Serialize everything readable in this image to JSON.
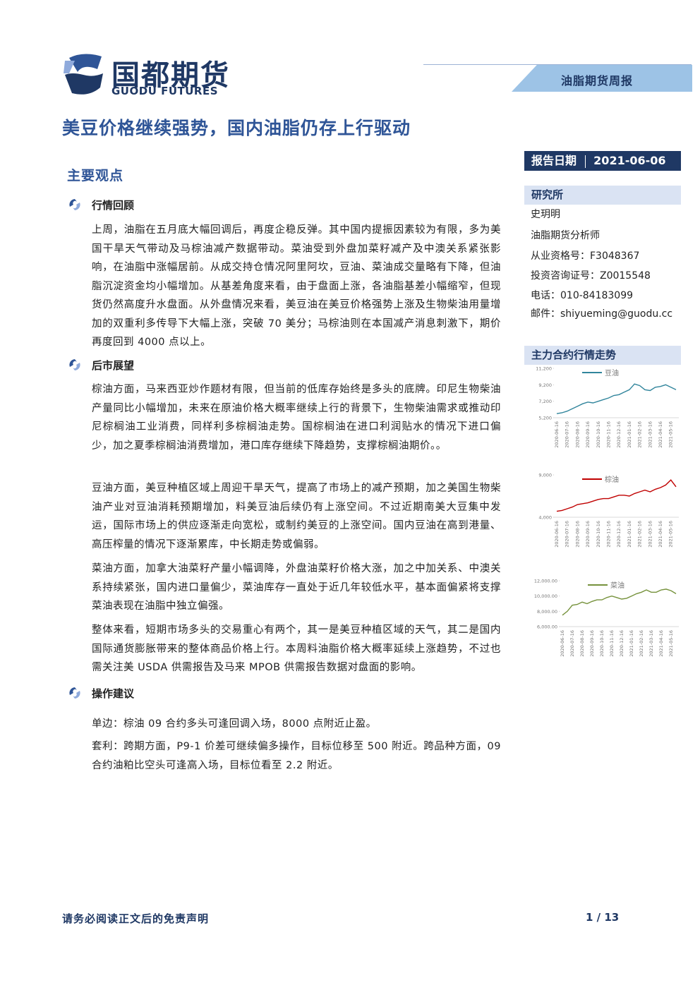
{
  "header": {
    "logo_cn": "国都期货",
    "logo_en": "GUODU FUTURES",
    "report_type": "油脂期货周报"
  },
  "title": "美豆价格继续强势，国内油脂仍存上行驱动",
  "report_date": {
    "label": "报告日期",
    "value": "2021-06-06"
  },
  "section": "主要观点",
  "subsections": [
    {
      "heading": "行情回顾",
      "paragraphs": [
        "上周，油脂在五月底大幅回调后，再度企稳反弹。其中国内提振因素较为有限，多为美国干旱天气带动及马棕油减产数据带动。菜油受到外盘加菜籽减产及中澳关系紧张影响，在油脂中涨幅居前。从成交持仓情况阿里阿坎，豆油、菜油成交量略有下降，但油脂沉淀资金均小幅增加。从基差角度来看，由于盘面上涨，各油脂基差小幅缩窄，但现货仍然高度升水盘面。从外盘情况来看，美豆油在美豆价格强势上涨及生物柴油用量增加的双重利多传导下大幅上涨，突破 70 美分；马棕油则在本国减产消息刺激下，期价再度回到 4000 点以上。"
      ]
    },
    {
      "heading": "后市展望",
      "paragraphs": [
        "棕油方面，马来西亚炒作题材有限，但当前的低库存始终是多头的底牌。印尼生物柴油产量同比小幅增加，未来在原油价格大概率继续上行的背景下，生物柴油需求或推动印尼棕榈油工业消费，同样利多棕榈油走势。国棕榈油在进口利润贴水的情况下进口偏少，加之夏季棕榈油消费增加，港口库存继续下降趋势，支撑棕榈油期价。。",
        "豆油方面，美豆种植区域上周迎干旱天气，提高了市场上的减产预期，加之美国生物柴油产业对豆油消耗预期增加，料美豆油后续仍有上涨空间。不过近期南美大豆集中发运，国际市场上的供应逐渐走向宽松，或制约美豆的上涨空间。国内豆油在高到港量、高压榨量的情况下逐渐累库，中长期走势或偏弱。",
        "菜油方面，加拿大油菜籽产量小幅调降，外盘油菜籽价格大涨，加之中加关系、中澳关系持续紧张，国内进口量偏少，菜油库存一直处于近几年较低水平，基本面偏紧将支撑菜油表现在油脂中独立偏强。",
        "整体来看，短期市场多头的交易重心有两个，其一是美豆种植区域的天气，其二是国内国际通货膨胀带来的整体商品价格上行。本周料油脂价格大概率延续上涨趋势，不过也需关注美 USDA 供需报告及马来 MPOB 供需报告数据对盘面的影响。"
      ]
    },
    {
      "heading": "操作建议",
      "paragraphs": [
        "单边：棕油 09 合约多头可逢回调入场，8000 点附近止盈。",
        "套利：跨期方面，P9-1 价差可继续偏多操作，目标位移至 500 附近。跨品种方面，09 合约油粕比空头可逢高入场，目标位看至 2.2 附近。"
      ]
    }
  ],
  "sidebar": {
    "institute": "研究所",
    "lines": [
      "史玥明",
      "油脂期货分析师",
      "从业资格号：F3048367",
      "投资咨询证号：Z0015548",
      "电话：010-84183099",
      "邮件：shiyueming@guodu.cc"
    ],
    "chart_heading": "主力合约行情走势"
  },
  "footer": {
    "disclaimer": "请务必阅读正文后的免责声明",
    "page": "1 / 13"
  },
  "chart_data": [
    {
      "type": "line",
      "legend": "top",
      "categories": [
        "2020-06-16",
        null,
        "2020-07-16",
        null,
        "2020-08-16",
        null,
        "2020-09-16",
        null,
        "2020-10-16",
        null,
        "2020-11-16",
        null,
        "2020-12-16",
        null,
        "2021-01-16",
        null,
        "2021-02-16",
        null,
        "2021-03-16",
        null,
        "2021-04-16",
        null,
        "2021-05-16",
        null
      ],
      "series": [
        {
          "name": "豆油",
          "color": "#31859c",
          "values": [
            5700,
            5800,
            6000,
            6300,
            6600,
            6900,
            7100,
            7000,
            7200,
            7400,
            7600,
            7900,
            8000,
            8300,
            8600,
            9300,
            9100,
            8600,
            8500,
            8900,
            9000,
            9200,
            8900,
            8600
          ]
        }
      ],
      "ylim": [
        5200,
        11200
      ],
      "yticks": [
        {
          "value": 5200,
          "label": "5,200"
        },
        {
          "value": 7200,
          "label": "7,200"
        },
        {
          "value": 9200,
          "label": "9,200"
        },
        {
          "value": 11200,
          "label": "11,200"
        }
      ]
    },
    {
      "type": "line",
      "legend": "top",
      "categories": [
        "2020-06-16",
        null,
        "2020-07-16",
        null,
        "2020-08-16",
        null,
        "2020-09-16",
        null,
        "2020-10-16",
        null,
        "2020-11-16",
        null,
        "2020-12-16",
        null,
        "2021-01-16",
        null,
        "2021-02-16",
        null,
        "2021-03-16",
        null,
        "2021-04-16",
        null,
        "2021-05-16",
        null
      ],
      "series": [
        {
          "name": "棕油",
          "color": "#c00000",
          "values": [
            4700,
            4800,
            5000,
            5200,
            5500,
            5600,
            5700,
            5900,
            6100,
            6200,
            6200,
            6400,
            6600,
            6600,
            6500,
            6800,
            7000,
            7200,
            7000,
            7300,
            7500,
            7800,
            8400,
            7600
          ]
        }
      ],
      "ylim": [
        4000,
        9000
      ],
      "yticks": [
        {
          "value": 4000,
          "label": "4,000"
        },
        {
          "value": 9000,
          "label": "9,000"
        }
      ]
    },
    {
      "type": "line",
      "legend": "top",
      "categories": [
        "2020-06-16",
        null,
        "2020-07-16",
        null,
        "2020-08-16",
        null,
        "2020-09-16",
        null,
        "2020-10-16",
        null,
        "2020-11-16",
        null,
        "2020-12-16",
        null,
        "2021-01-16",
        null,
        "2021-02-16",
        null,
        "2021-03-16",
        null,
        "2021-04-16",
        null,
        "2021-05-16",
        null
      ],
      "series": [
        {
          "name": "菜油",
          "color": "#76923c",
          "values": [
            7500,
            8000,
            8800,
            8900,
            9200,
            9000,
            9300,
            9500,
            9500,
            9800,
            10000,
            9800,
            9600,
            9700,
            10000,
            10300,
            10500,
            10800,
            10500,
            10500,
            10800,
            10900,
            10700,
            10300
          ]
        }
      ],
      "ylim": [
        6000,
        12000
      ],
      "yticks": [
        {
          "value": 6000,
          "label": "6,000.00"
        },
        {
          "value": 8000,
          "label": "8,000.00"
        },
        {
          "value": 10000,
          "label": "10,000.00"
        },
        {
          "value": 12000,
          "label": "12,000.00"
        }
      ]
    }
  ]
}
